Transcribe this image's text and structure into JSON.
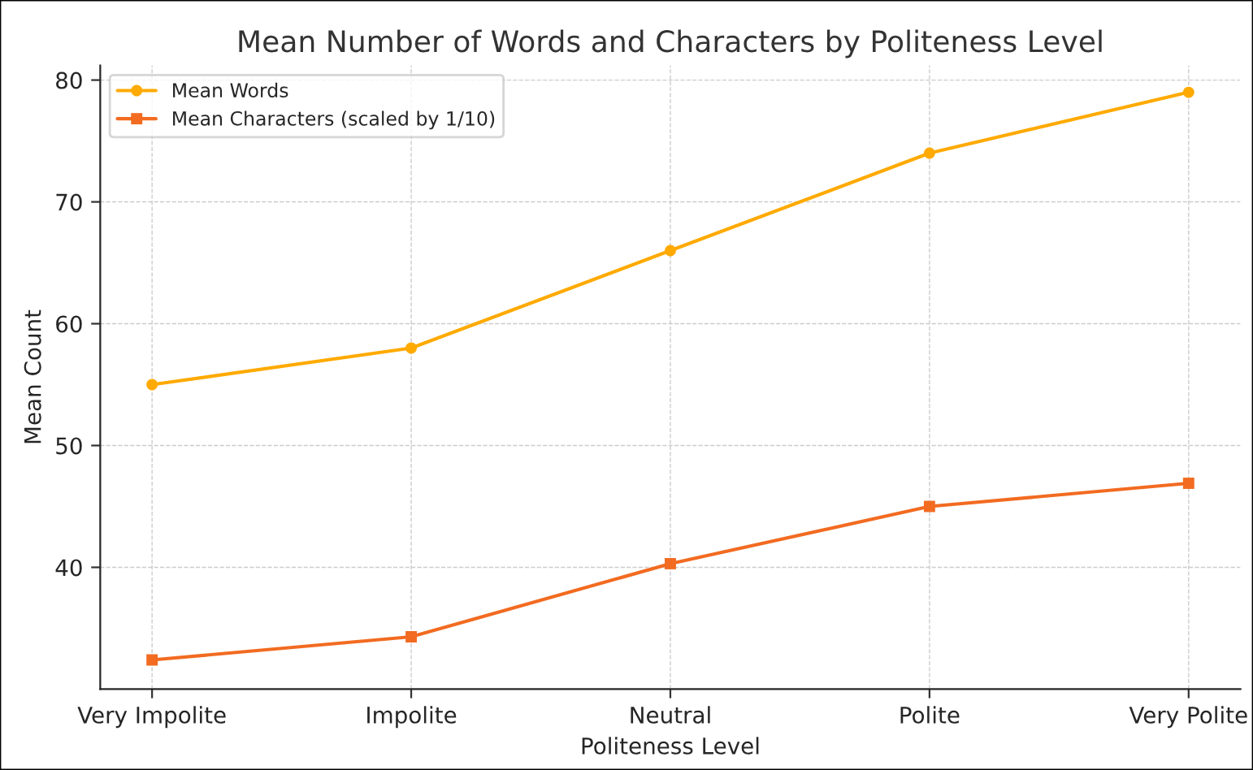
{
  "chart_data": {
    "type": "line",
    "title": "Mean Number of Words and Characters by Politeness Level",
    "xlabel": "Politeness Level",
    "ylabel": "Mean Count",
    "categories": [
      "Very Impolite",
      "Impolite",
      "Neutral",
      "Polite",
      "Very Polite"
    ],
    "series": [
      {
        "name": "Mean Words",
        "color": "#ffaa00",
        "marker": "circle",
        "values": [
          55,
          58,
          66,
          74,
          79
        ]
      },
      {
        "name": "Mean Characters (scaled by 1/10)",
        "color": "#f26b21",
        "marker": "square",
        "values": [
          32.4,
          34.3,
          40.3,
          45.0,
          46.9
        ]
      }
    ],
    "ylim": [
      30,
      81.2
    ],
    "yticks": [
      40,
      50,
      60,
      70,
      80
    ],
    "grid": true,
    "legend": "top left",
    "line_style": "solid"
  }
}
